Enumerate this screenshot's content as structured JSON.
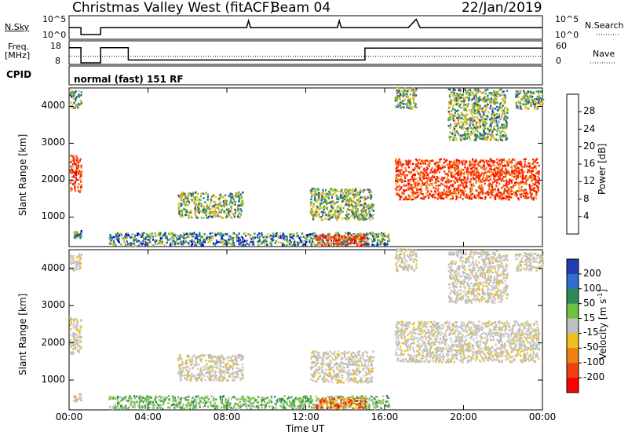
{
  "header": {
    "station": "Christmas Valley West (fitACF)",
    "beam": "Beam 04",
    "date": "22/Jan/2019"
  },
  "strip_labels": {
    "nsky": "N.Sky",
    "nsearch": "N.Search",
    "freq_line1": "Freq.",
    "freq_line2": "[MHz]",
    "nave": "Nave",
    "cpid": "CPID",
    "cpid_value": "normal (fast) 151 RF",
    "nsky_ticks": [
      "10^5",
      "10^0"
    ],
    "nsearch_ticks": [
      "10^5",
      "10^0"
    ],
    "freq_ticks": [
      "18",
      "8"
    ],
    "nave_ticks": [
      "60",
      "0"
    ]
  },
  "chart_data": [
    {
      "type": "heatmap",
      "name": "power-panel",
      "ylabel": "Slant Range [km]",
      "xlabel": "Time UT",
      "xticks": [
        "00:00",
        "04:00",
        "08:00",
        "12:00",
        "16:00",
        "20:00",
        "00:00"
      ],
      "yticks": [
        "1000",
        "2000",
        "3000",
        "4000"
      ],
      "ylim": [
        200,
        4500
      ],
      "xlim_hours": [
        0,
        24
      ],
      "colorbar": {
        "label": "Power [dB]",
        "ticks": [
          "4",
          "8",
          "12",
          "16",
          "20",
          "24",
          "28"
        ],
        "colors": [
          "#0000ff",
          "#1f4fb0",
          "#2e8b57",
          "#6fb04a",
          "#d8d020",
          "#f0a020",
          "#f06010",
          "#ff0000"
        ]
      },
      "regions": [
        {
          "t0": 0.0,
          "t1": 0.6,
          "r0": 1700,
          "r1": 2700,
          "level": "high"
        },
        {
          "t0": 0.0,
          "t1": 0.6,
          "r0": 3950,
          "r1": 4450,
          "level": "mid"
        },
        {
          "t0": 0.2,
          "t1": 0.6,
          "r0": 450,
          "r1": 650,
          "level": "low"
        },
        {
          "t0": 5.5,
          "t1": 8.8,
          "r0": 1000,
          "r1": 1700,
          "level": "mid"
        },
        {
          "t0": 12.2,
          "t1": 15.4,
          "r0": 950,
          "r1": 1800,
          "level": "mid"
        },
        {
          "t0": 2.0,
          "t1": 16.2,
          "r0": 250,
          "r1": 600,
          "level": "low"
        },
        {
          "t0": 12.5,
          "t1": 15.0,
          "r0": 250,
          "r1": 550,
          "level": "high"
        },
        {
          "t0": 16.5,
          "t1": 23.8,
          "r0": 1500,
          "r1": 2600,
          "level": "high"
        },
        {
          "t0": 16.5,
          "t1": 17.6,
          "r0": 3950,
          "r1": 4550,
          "level": "mid"
        },
        {
          "t0": 19.2,
          "t1": 22.2,
          "r0": 3100,
          "r1": 4500,
          "level": "mid"
        },
        {
          "t0": 22.6,
          "t1": 24.0,
          "r0": 3950,
          "r1": 4450,
          "level": "mid"
        }
      ]
    },
    {
      "type": "heatmap",
      "name": "velocity-panel",
      "ylabel": "Slant Range [km]",
      "xlabel": "Time UT",
      "xticks": [
        "00:00",
        "04:00",
        "08:00",
        "12:00",
        "16:00",
        "20:00",
        "00:00"
      ],
      "yticks": [
        "1000",
        "2000",
        "3000",
        "4000"
      ],
      "ylim": [
        200,
        4500
      ],
      "xlim_hours": [
        0,
        24
      ],
      "colorbar": {
        "label": "Velocity [m s^-1]",
        "ticks": [
          "200",
          "100",
          "50",
          "15",
          "-15",
          "-50",
          "-100",
          "-200"
        ],
        "colors": [
          "#1f3fb0",
          "#2f6fd0",
          "#2e8b57",
          "#70c040",
          "#c0c0c0",
          "#f0c020",
          "#f08010",
          "#f04010",
          "#ff0000"
        ]
      },
      "regions": [
        {
          "t0": 0.0,
          "t1": 0.6,
          "r0": 1700,
          "r1": 2700,
          "level": "zero"
        },
        {
          "t0": 0.0,
          "t1": 0.6,
          "r0": 3950,
          "r1": 4450,
          "level": "zero"
        },
        {
          "t0": 0.2,
          "t1": 0.6,
          "r0": 450,
          "r1": 650,
          "level": "zero"
        },
        {
          "t0": 5.5,
          "t1": 8.8,
          "r0": 1000,
          "r1": 1700,
          "level": "zero"
        },
        {
          "t0": 12.2,
          "t1": 15.4,
          "r0": 950,
          "r1": 1800,
          "level": "zero"
        },
        {
          "t0": 2.0,
          "t1": 16.2,
          "r0": 250,
          "r1": 600,
          "level": "pos"
        },
        {
          "t0": 12.5,
          "t1": 15.0,
          "r0": 250,
          "r1": 550,
          "level": "neg"
        },
        {
          "t0": 16.5,
          "t1": 23.8,
          "r0": 1500,
          "r1": 2600,
          "level": "zero"
        },
        {
          "t0": 16.5,
          "t1": 17.6,
          "r0": 3950,
          "r1": 4550,
          "level": "zero"
        },
        {
          "t0": 19.2,
          "t1": 22.2,
          "r0": 3100,
          "r1": 4500,
          "level": "zero"
        },
        {
          "t0": 22.6,
          "t1": 24.0,
          "r0": 3950,
          "r1": 4450,
          "level": "zero"
        }
      ]
    }
  ],
  "nsky_trace": [
    [
      0,
      1
    ],
    [
      0.6,
      1
    ],
    [
      0.6,
      0
    ],
    [
      1.6,
      0
    ],
    [
      1.6,
      1
    ],
    [
      9,
      1
    ],
    [
      9.1,
      2
    ],
    [
      9.2,
      1
    ],
    [
      13.6,
      1
    ],
    [
      13.7,
      2
    ],
    [
      13.8,
      1
    ],
    [
      17.2,
      1
    ],
    [
      17.6,
      2.2
    ],
    [
      17.8,
      1
    ],
    [
      24,
      1
    ]
  ],
  "freq_trace": [
    [
      0,
      0.8
    ],
    [
      0.6,
      0.8
    ],
    [
      0.6,
      0
    ],
    [
      1.6,
      0
    ],
    [
      1.6,
      0.8
    ],
    [
      3.0,
      0.8
    ],
    [
      3.0,
      0.15
    ],
    [
      15.0,
      0.15
    ],
    [
      15.0,
      0.78
    ],
    [
      24,
      0.78
    ]
  ],
  "nave_trace": [
    [
      0,
      0.35
    ],
    [
      24,
      0.35
    ]
  ]
}
